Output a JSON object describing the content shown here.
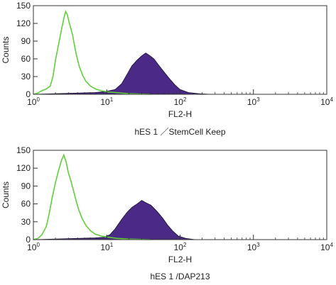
{
  "chart_data": [
    {
      "type": "area",
      "caption": "hES 1 ／StemCell Keep",
      "xlabel": "FL2-H",
      "ylabel": "Counts",
      "xscale": "log",
      "xlim": [
        1,
        10000
      ],
      "ylim": [
        0,
        150
      ],
      "yticks": [
        0,
        30,
        60,
        90,
        120,
        150
      ],
      "xticks": [
        1,
        10,
        100,
        1000,
        10000
      ],
      "xtick_labels": [
        {
          "base": "10",
          "exp": "0"
        },
        {
          "base": "10",
          "exp": "1"
        },
        {
          "base": "10",
          "exp": "2"
        },
        {
          "base": "10",
          "exp": "3"
        },
        {
          "base": "10",
          "exp": "4"
        }
      ],
      "grid": false,
      "series": [
        {
          "style": "outline",
          "color": "#5fcf3a",
          "points": [
            [
              1.0,
              0
            ],
            [
              1.15,
              2
            ],
            [
              1.3,
              6
            ],
            [
              1.5,
              9
            ],
            [
              1.7,
              14
            ],
            [
              1.85,
              30
            ],
            [
              2.0,
              58
            ],
            [
              2.2,
              84
            ],
            [
              2.4,
              108
            ],
            [
              2.6,
              128
            ],
            [
              2.75,
              140
            ],
            [
              2.9,
              135
            ],
            [
              3.1,
              120
            ],
            [
              3.4,
              102
            ],
            [
              3.8,
              70
            ],
            [
              4.2,
              48
            ],
            [
              4.7,
              32
            ],
            [
              5.2,
              22
            ],
            [
              6.0,
              14
            ],
            [
              7.0,
              9
            ],
            [
              8.5,
              6
            ],
            [
              10.5,
              4
            ],
            [
              13,
              3
            ],
            [
              20,
              1
            ],
            [
              40,
              0
            ]
          ]
        },
        {
          "style": "filled",
          "color": "#4a2a86",
          "points": [
            [
              1.0,
              0
            ],
            [
              2.0,
              1
            ],
            [
              4.0,
              2
            ],
            [
              7.0,
              3
            ],
            [
              10,
              5
            ],
            [
              13,
              8
            ],
            [
              16,
              18
            ],
            [
              19,
              34
            ],
            [
              22,
              48
            ],
            [
              26,
              58
            ],
            [
              30,
              65
            ],
            [
              34,
              70
            ],
            [
              38,
              66
            ],
            [
              44,
              60
            ],
            [
              52,
              48
            ],
            [
              62,
              36
            ],
            [
              72,
              26
            ],
            [
              85,
              16
            ],
            [
              100,
              8
            ],
            [
              130,
              3
            ],
            [
              180,
              1
            ],
            [
              260,
              0
            ]
          ]
        }
      ]
    },
    {
      "type": "area",
      "caption": "hES 1 /DAP213",
      "xlabel": "FL2-H",
      "ylabel": "Counts",
      "xscale": "log",
      "xlim": [
        1,
        10000
      ],
      "ylim": [
        0,
        150
      ],
      "yticks": [
        0,
        30,
        60,
        90,
        120,
        150
      ],
      "xticks": [
        1,
        10,
        100,
        1000,
        10000
      ],
      "xtick_labels": [
        {
          "base": "10",
          "exp": "0"
        },
        {
          "base": "10",
          "exp": "1"
        },
        {
          "base": "10",
          "exp": "2"
        },
        {
          "base": "10",
          "exp": "3"
        },
        {
          "base": "10",
          "exp": "4"
        }
      ],
      "grid": false,
      "series": [
        {
          "style": "outline",
          "color": "#5fcf3a",
          "points": [
            [
              1.0,
              0
            ],
            [
              1.15,
              2
            ],
            [
              1.3,
              8
            ],
            [
              1.5,
              22
            ],
            [
              1.65,
              45
            ],
            [
              1.8,
              70
            ],
            [
              2.0,
              96
            ],
            [
              2.2,
              116
            ],
            [
              2.4,
              132
            ],
            [
              2.6,
              142
            ],
            [
              2.8,
              130
            ],
            [
              3.0,
              112
            ],
            [
              3.3,
              96
            ],
            [
              3.7,
              72
            ],
            [
              4.1,
              52
            ],
            [
              4.6,
              36
            ],
            [
              5.2,
              24
            ],
            [
              6.0,
              15
            ],
            [
              7.0,
              9
            ],
            [
              8.5,
              6
            ],
            [
              10.5,
              4
            ],
            [
              14,
              2
            ],
            [
              20,
              1
            ],
            [
              40,
              0
            ]
          ]
        },
        {
          "style": "filled",
          "color": "#4a2a86",
          "points": [
            [
              1.0,
              0
            ],
            [
              2.0,
              1
            ],
            [
              4.0,
              2
            ],
            [
              7.0,
              3
            ],
            [
              9,
              4
            ],
            [
              11,
              8
            ],
            [
              13,
              18
            ],
            [
              16,
              34
            ],
            [
              19,
              46
            ],
            [
              22,
              54
            ],
            [
              26,
              60
            ],
            [
              30,
              66
            ],
            [
              34,
              62
            ],
            [
              40,
              58
            ],
            [
              48,
              48
            ],
            [
              58,
              36
            ],
            [
              68,
              24
            ],
            [
              80,
              14
            ],
            [
              95,
              6
            ],
            [
              120,
              2
            ],
            [
              160,
              0
            ]
          ]
        }
      ]
    }
  ]
}
